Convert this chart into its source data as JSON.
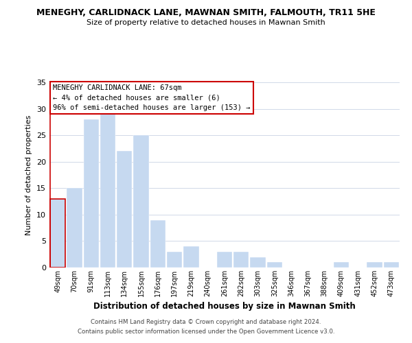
{
  "title": "MENEGHY, CARLIDNACK LANE, MAWNAN SMITH, FALMOUTH, TR11 5HE",
  "subtitle": "Size of property relative to detached houses in Mawnan Smith",
  "xlabel": "Distribution of detached houses by size in Mawnan Smith",
  "ylabel": "Number of detached properties",
  "footer_line1": "Contains HM Land Registry data © Crown copyright and database right 2024.",
  "footer_line2": "Contains public sector information licensed under the Open Government Licence v3.0.",
  "bar_labels": [
    "49sqm",
    "70sqm",
    "91sqm",
    "113sqm",
    "134sqm",
    "155sqm",
    "176sqm",
    "197sqm",
    "219sqm",
    "240sqm",
    "261sqm",
    "282sqm",
    "303sqm",
    "325sqm",
    "346sqm",
    "367sqm",
    "388sqm",
    "409sqm",
    "431sqm",
    "452sqm",
    "473sqm"
  ],
  "bar_values": [
    13,
    15,
    28,
    29,
    22,
    25,
    9,
    3,
    4,
    0,
    3,
    3,
    2,
    1,
    0,
    0,
    0,
    1,
    0,
    1,
    1
  ],
  "bar_color": "#c6d9f0",
  "highlight_bar_index": 0,
  "highlight_line_color": "#cc0000",
  "ylim": [
    0,
    35
  ],
  "yticks": [
    0,
    5,
    10,
    15,
    20,
    25,
    30,
    35
  ],
  "annotation_title": "MENEGHY CARLIDNACK LANE: 67sqm",
  "annotation_line1": "← 4% of detached houses are smaller (6)",
  "annotation_line2": "96% of semi-detached houses are larger (153) →",
  "annotation_box_color": "#ffffff",
  "annotation_box_edge_color": "#cc0000",
  "background_color": "#ffffff",
  "grid_color": "#d0d8e8"
}
